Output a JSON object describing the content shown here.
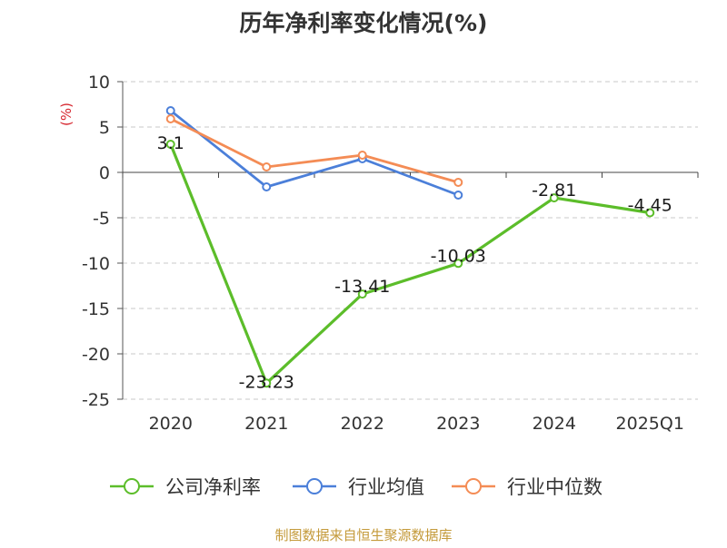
{
  "chart_data": {
    "type": "line",
    "title": "历年净利率变化情况(%)",
    "ylabel": "(%)",
    "ylim": [
      -25,
      10
    ],
    "yticks": [
      10,
      5,
      0,
      -5,
      -10,
      -15,
      -20,
      -25
    ],
    "categories": [
      "2020",
      "2021",
      "2022",
      "2023",
      "2024",
      "2025Q1"
    ],
    "series": [
      {
        "name": "公司净利率",
        "color": "#5cbd2a",
        "values": [
          3.1,
          -23.23,
          -13.41,
          -10.03,
          -2.81,
          -4.45
        ],
        "labels": [
          "3.1",
          "-23.23",
          "-13.41",
          "-10.03",
          "-2.81",
          "-4.45"
        ]
      },
      {
        "name": "行业均值",
        "color": "#4b7fd9",
        "values": [
          6.8,
          -1.6,
          1.5,
          -2.5,
          null,
          null
        ]
      },
      {
        "name": "行业中位数",
        "color": "#f48c55",
        "values": [
          5.9,
          0.6,
          1.9,
          -1.1,
          null,
          null
        ]
      }
    ],
    "grid": true,
    "legend": "bottom"
  },
  "source": "制图数据来自恒生聚源数据库"
}
